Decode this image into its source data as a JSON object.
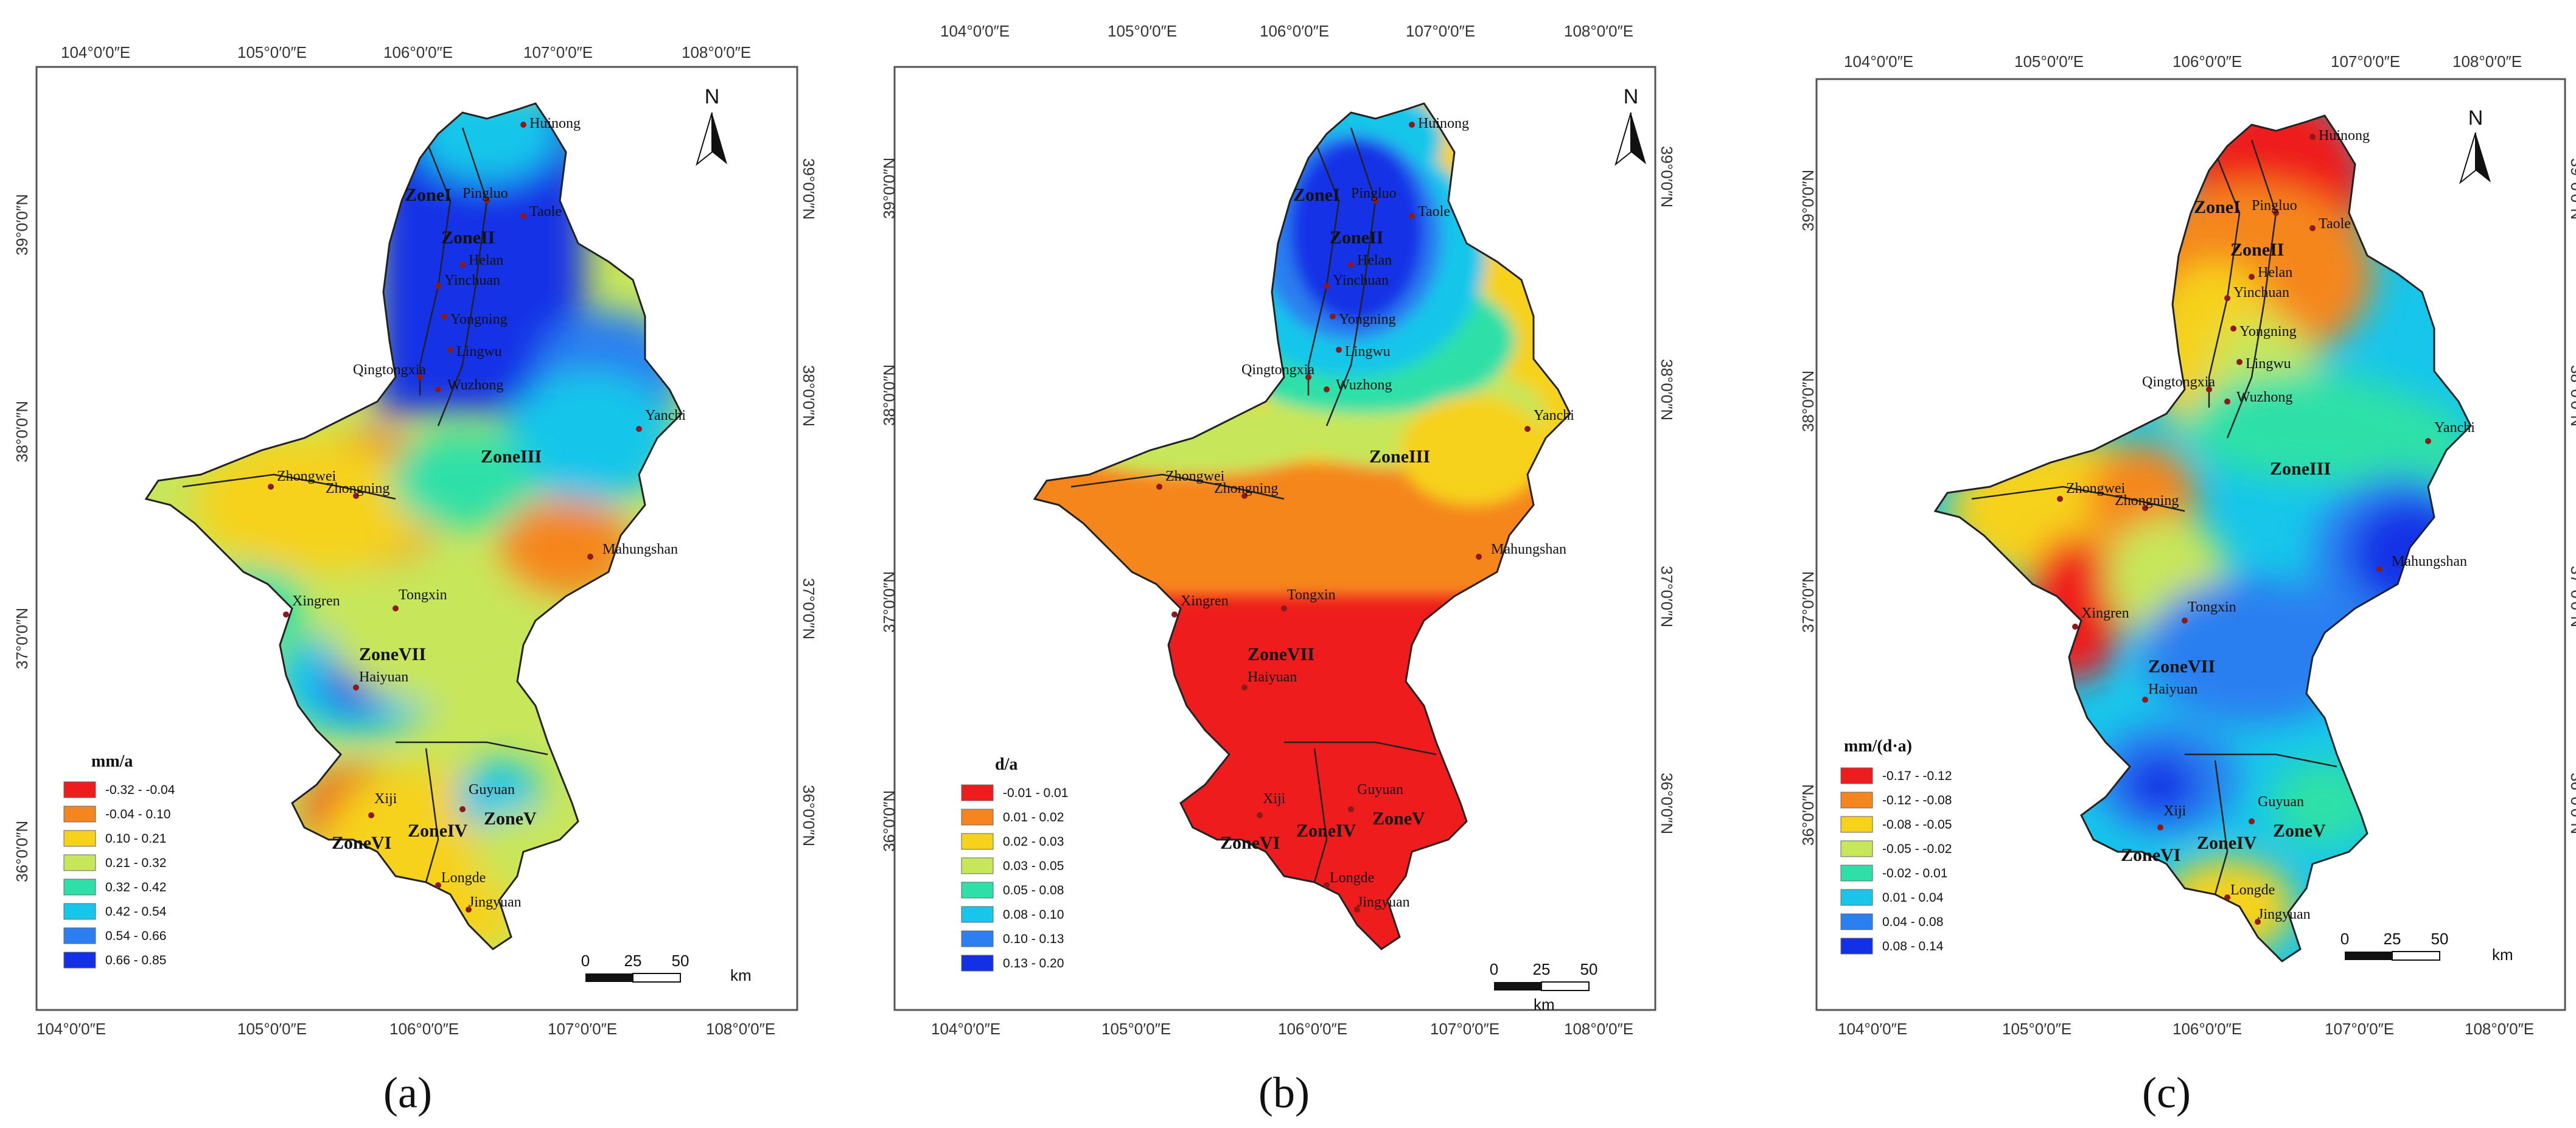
{
  "figure": {
    "captions": [
      "(a)",
      "(b)",
      "(c)"
    ],
    "north_label": "N",
    "scale_ticks": [
      "0",
      "25",
      "50"
    ],
    "scale_unit": "km"
  },
  "axes": {
    "lon_labels": [
      "104°0′0″E",
      "105°0′0″E",
      "106°0′0″E",
      "107°0′0″E",
      "108°0′0″E"
    ],
    "lat_labels": [
      "39°0′0″N",
      "38°0′0″N",
      "37°0′0″N",
      "36°0′0″N"
    ]
  },
  "cities": [
    "Huinong",
    "Pingluo",
    "Taole",
    "Helan",
    "Yinchuan",
    "Yongning",
    "Lingwu",
    "Qingtongxia",
    "Wuzhong",
    "Yanchi",
    "Zhongwei",
    "Zhongning",
    "Mahungshan",
    "Tongxin",
    "Xingren",
    "Haiyuan",
    "Guyuan",
    "Xiji",
    "Longde",
    "Jingyuan"
  ],
  "zones": [
    "ZoneI",
    "ZoneII",
    "ZoneIII",
    "ZoneIV",
    "ZoneV",
    "ZoneVI",
    "ZoneVII"
  ],
  "legends": [
    {
      "title": "mm/a",
      "items": [
        "-0.32 - -0.04",
        "-0.04 - 0.10",
        "0.10 - 0.21",
        "0.21 - 0.32",
        "0.32 - 0.42",
        "0.42 - 0.54",
        "0.54 - 0.66",
        "0.66 - 0.85"
      ],
      "colors": [
        "#ee1c1c",
        "#f5861f",
        "#f6d21c",
        "#c8e65a",
        "#2ee0a8",
        "#17c6ea",
        "#2b7ff0",
        "#1430e6"
      ]
    },
    {
      "title": "d/a",
      "items": [
        "-0.01 - 0.01",
        "0.01 - 0.02",
        "0.02 - 0.03",
        "0.03 - 0.05",
        "0.05 - 0.08",
        "0.08 - 0.10",
        "0.10 - 0.13",
        "0.13 - 0.20"
      ],
      "colors": [
        "#ee1c1c",
        "#f5861f",
        "#f6d21c",
        "#c8e65a",
        "#2ee0a8",
        "#17c6ea",
        "#2b7ff0",
        "#1430e6"
      ]
    },
    {
      "title": "mm/(d·a)",
      "items": [
        "-0.17 - -0.12",
        "-0.12 - -0.08",
        "-0.08 - -0.05",
        "-0.05 - -0.02",
        "-0.02 - 0.01",
        "0.01 - 0.04",
        "0.04 - 0.08",
        "0.08 - 0.14"
      ],
      "colors": [
        "#ee1c1c",
        "#f5861f",
        "#f6d21c",
        "#c8e65a",
        "#2ee0a8",
        "#17c6ea",
        "#2b7ff0",
        "#1430e6"
      ]
    }
  ]
}
